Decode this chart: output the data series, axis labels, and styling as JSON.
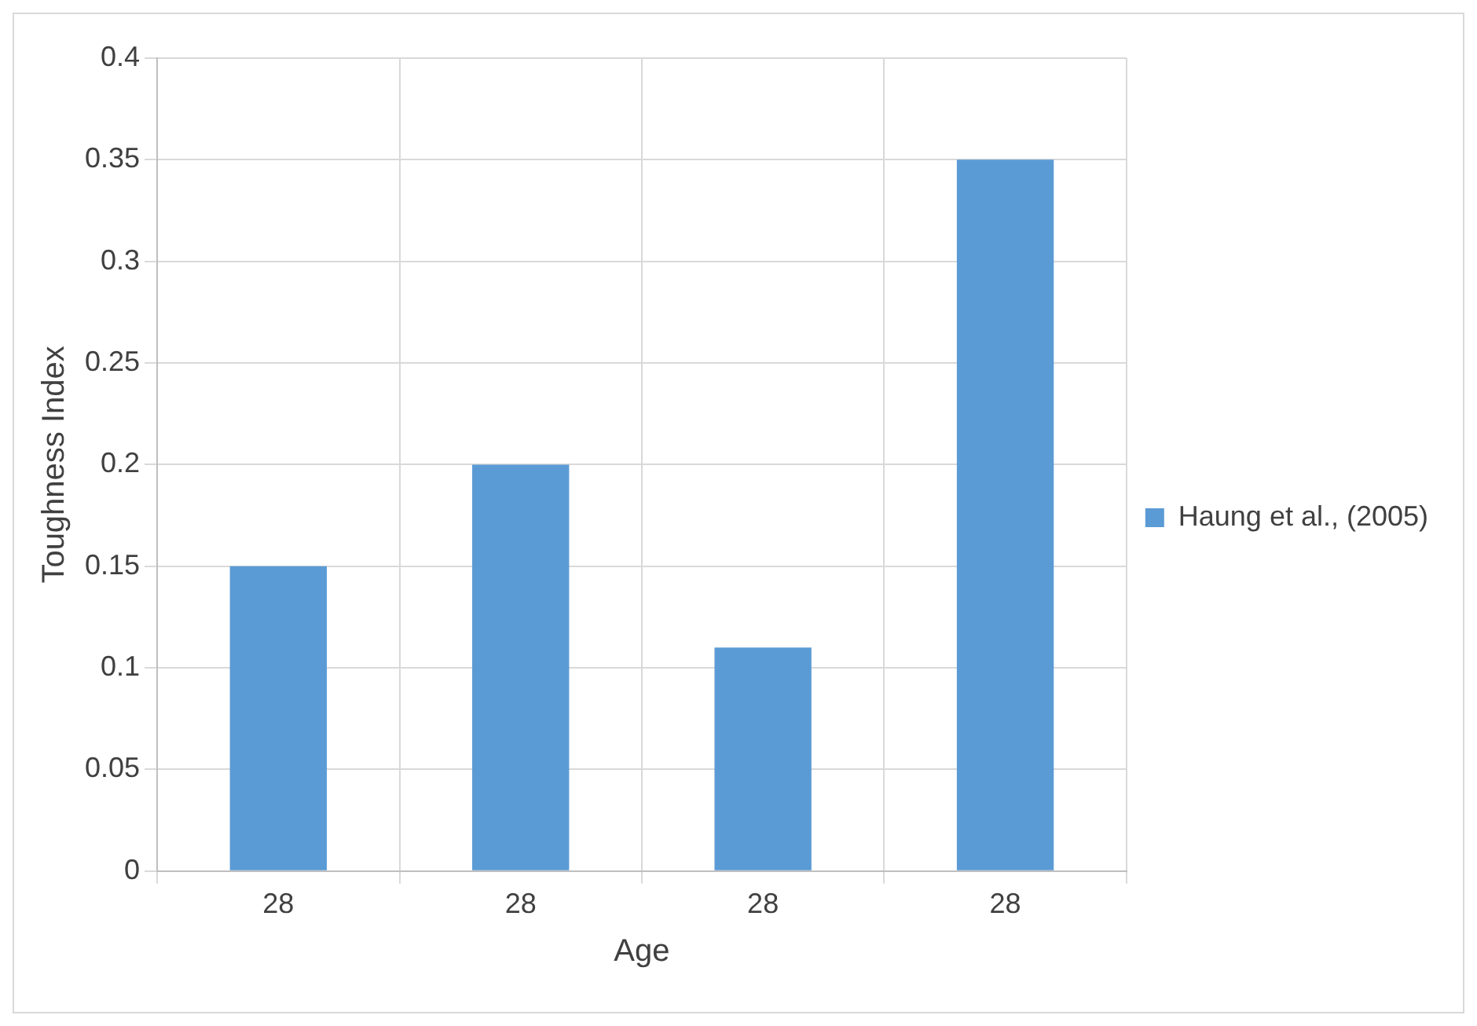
{
  "chart_data": {
    "type": "bar",
    "xlabel": "Age",
    "ylabel": "Toughness Index",
    "categories": [
      "28",
      "28",
      "28",
      "28"
    ],
    "series": [
      {
        "name": "Haung et al., (2005)",
        "color": "#5b9bd5",
        "values": [
          0.15,
          0.2,
          0.11,
          0.35
        ]
      }
    ],
    "ylim": [
      0,
      0.4
    ],
    "yticks": [
      0,
      0.05,
      0.1,
      0.15,
      0.2,
      0.25,
      0.3,
      0.35,
      0.4
    ],
    "grid": true,
    "legend": "right"
  }
}
